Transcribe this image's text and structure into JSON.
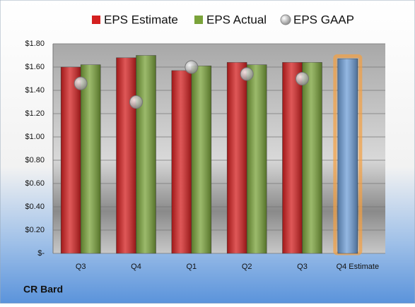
{
  "chart_data": {
    "type": "bar",
    "footer": "CR Bard",
    "categories": [
      "Q3",
      "Q4",
      "Q1",
      "Q2",
      "Q3",
      "Q4 Estimate"
    ],
    "series": [
      {
        "name": "EPS Estimate",
        "color": "#d42020",
        "values": [
          1.6,
          1.68,
          1.57,
          1.64,
          1.64,
          1.67
        ],
        "point_colors": [
          "#d42020",
          "#d42020",
          "#d42020",
          "#d42020",
          "#d42020",
          "#6f9fd8"
        ]
      },
      {
        "name": "EPS Actual",
        "color": "#7aa33a",
        "values": [
          1.62,
          1.7,
          1.61,
          1.62,
          1.64,
          null
        ]
      },
      {
        "name": "EPS GAAP",
        "color": "#b8b8b8",
        "marker": "circle",
        "values": [
          1.46,
          1.3,
          1.6,
          1.54,
          1.5,
          null
        ]
      }
    ],
    "ylim": [
      0,
      1.8
    ],
    "yticks": [
      {
        "value": 0,
        "label": "$-"
      },
      {
        "value": 0.2,
        "label": "$0.20"
      },
      {
        "value": 0.4,
        "label": "$0.40"
      },
      {
        "value": 0.6,
        "label": "$0.60"
      },
      {
        "value": 0.8,
        "label": "$0.80"
      },
      {
        "value": 1.0,
        "label": "$1.00"
      },
      {
        "value": 1.2,
        "label": "$1.20"
      },
      {
        "value": 1.4,
        "label": "$1.40"
      },
      {
        "value": 1.6,
        "label": "$1.60"
      },
      {
        "value": 1.8,
        "label": "$1.80"
      }
    ],
    "grid": true
  }
}
